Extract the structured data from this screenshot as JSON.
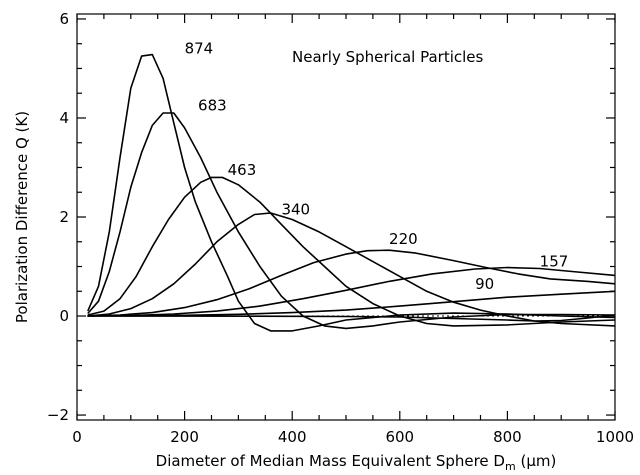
{
  "chart_data": {
    "type": "line",
    "title": "",
    "annotation": "Nearly Spherical Particles",
    "xlabel": "Diameter of Median Mass Equivalent Sphere D",
    "xlabel_sub": "m",
    "xlabel_unit": " (μm)",
    "ylabel": "Polarization Difference Q (K)",
    "xlim": [
      0,
      1000
    ],
    "ylim": [
      -2.1,
      6.1
    ],
    "x_ticks": [
      0,
      200,
      400,
      600,
      800,
      1000
    ],
    "y_ticks": [
      -2,
      0,
      2,
      4,
      6
    ],
    "x_tick_labels": [
      "0",
      "200",
      "400",
      "600",
      "800",
      "1000"
    ],
    "y_tick_labels": [
      "−2",
      "0",
      "2",
      "4",
      "6"
    ],
    "zero_line": true,
    "grid": false,
    "series": [
      {
        "name": "874",
        "label_pos": [
          200,
          5.3
        ],
        "points": [
          [
            20,
            0.1
          ],
          [
            40,
            0.6
          ],
          [
            60,
            1.7
          ],
          [
            80,
            3.2
          ],
          [
            100,
            4.6
          ],
          [
            120,
            5.25
          ],
          [
            140,
            5.28
          ],
          [
            160,
            4.8
          ],
          [
            180,
            3.9
          ],
          [
            200,
            3.0
          ],
          [
            220,
            2.3
          ],
          [
            250,
            1.5
          ],
          [
            280,
            0.8
          ],
          [
            300,
            0.3
          ],
          [
            330,
            -0.15
          ],
          [
            360,
            -0.3
          ],
          [
            400,
            -0.3
          ],
          [
            450,
            -0.2
          ],
          [
            500,
            -0.08
          ],
          [
            600,
            0.02
          ],
          [
            700,
            0.06
          ],
          [
            800,
            0.04
          ],
          [
            900,
            0.0
          ],
          [
            1000,
            -0.03
          ]
        ]
      },
      {
        "name": "683",
        "label_pos": [
          225,
          4.15
        ],
        "points": [
          [
            20,
            0.05
          ],
          [
            40,
            0.3
          ],
          [
            60,
            0.9
          ],
          [
            80,
            1.7
          ],
          [
            100,
            2.6
          ],
          [
            120,
            3.3
          ],
          [
            140,
            3.85
          ],
          [
            160,
            4.1
          ],
          [
            180,
            4.1
          ],
          [
            200,
            3.8
          ],
          [
            230,
            3.2
          ],
          [
            260,
            2.5
          ],
          [
            300,
            1.7
          ],
          [
            340,
            1.0
          ],
          [
            380,
            0.4
          ],
          [
            420,
            0.0
          ],
          [
            460,
            -0.2
          ],
          [
            500,
            -0.25
          ],
          [
            550,
            -0.2
          ],
          [
            600,
            -0.12
          ],
          [
            700,
            -0.02
          ],
          [
            800,
            0.03
          ],
          [
            900,
            0.03
          ],
          [
            1000,
            0.02
          ]
        ]
      },
      {
        "name": "463",
        "label_pos": [
          280,
          2.85
        ],
        "points": [
          [
            20,
            0.02
          ],
          [
            50,
            0.1
          ],
          [
            80,
            0.35
          ],
          [
            110,
            0.8
          ],
          [
            140,
            1.4
          ],
          [
            170,
            1.95
          ],
          [
            200,
            2.4
          ],
          [
            230,
            2.7
          ],
          [
            250,
            2.8
          ],
          [
            270,
            2.8
          ],
          [
            300,
            2.65
          ],
          [
            340,
            2.3
          ],
          [
            380,
            1.85
          ],
          [
            420,
            1.4
          ],
          [
            460,
            1.0
          ],
          [
            500,
            0.6
          ],
          [
            550,
            0.25
          ],
          [
            600,
            0.0
          ],
          [
            650,
            -0.15
          ],
          [
            700,
            -0.2
          ],
          [
            800,
            -0.18
          ],
          [
            900,
            -0.12
          ],
          [
            1000,
            -0.08
          ]
        ]
      },
      {
        "name": "340",
        "label_pos": [
          380,
          2.05
        ],
        "points": [
          [
            20,
            0.0
          ],
          [
            60,
            0.04
          ],
          [
            100,
            0.15
          ],
          [
            140,
            0.35
          ],
          [
            180,
            0.65
          ],
          [
            220,
            1.05
          ],
          [
            260,
            1.5
          ],
          [
            300,
            1.85
          ],
          [
            330,
            2.05
          ],
          [
            360,
            2.08
          ],
          [
            400,
            1.95
          ],
          [
            450,
            1.7
          ],
          [
            500,
            1.4
          ],
          [
            550,
            1.1
          ],
          [
            600,
            0.8
          ],
          [
            650,
            0.5
          ],
          [
            700,
            0.28
          ],
          [
            750,
            0.12
          ],
          [
            800,
            0.0
          ],
          [
            850,
            -0.1
          ],
          [
            900,
            -0.15
          ],
          [
            1000,
            -0.2
          ]
        ]
      },
      {
        "name": "220",
        "label_pos": [
          580,
          1.45
        ],
        "points": [
          [
            20,
            0.0
          ],
          [
            80,
            0.02
          ],
          [
            140,
            0.07
          ],
          [
            200,
            0.17
          ],
          [
            260,
            0.33
          ],
          [
            320,
            0.55
          ],
          [
            380,
            0.82
          ],
          [
            440,
            1.08
          ],
          [
            500,
            1.25
          ],
          [
            540,
            1.32
          ],
          [
            580,
            1.33
          ],
          [
            630,
            1.27
          ],
          [
            700,
            1.12
          ],
          [
            760,
            0.98
          ],
          [
            820,
            0.85
          ],
          [
            880,
            0.75
          ],
          [
            950,
            0.7
          ],
          [
            1000,
            0.65
          ]
        ]
      },
      {
        "name": "157",
        "label_pos": [
          860,
          1.0
        ],
        "points": [
          [
            20,
            0.0
          ],
          [
            100,
            0.01
          ],
          [
            180,
            0.04
          ],
          [
            260,
            0.1
          ],
          [
            340,
            0.2
          ],
          [
            420,
            0.35
          ],
          [
            500,
            0.52
          ],
          [
            580,
            0.7
          ],
          [
            660,
            0.85
          ],
          [
            740,
            0.95
          ],
          [
            800,
            0.98
          ],
          [
            860,
            0.96
          ],
          [
            920,
            0.9
          ],
          [
            1000,
            0.82
          ]
        ]
      },
      {
        "name": "90",
        "label_pos": [
          740,
          0.55
        ],
        "points": [
          [
            20,
            0.0
          ],
          [
            100,
            0.005
          ],
          [
            200,
            0.015
          ],
          [
            300,
            0.035
          ],
          [
            400,
            0.07
          ],
          [
            500,
            0.12
          ],
          [
            600,
            0.2
          ],
          [
            700,
            0.29
          ],
          [
            800,
            0.38
          ],
          [
            900,
            0.44
          ],
          [
            1000,
            0.5
          ]
        ]
      },
      {
        "name": "",
        "label_pos": null,
        "points": [
          [
            20,
            0.0
          ],
          [
            200,
            -0.002
          ],
          [
            400,
            -0.005
          ],
          [
            500,
            -0.01
          ],
          [
            600,
            -0.02
          ],
          [
            700,
            -0.05
          ],
          [
            800,
            -0.08
          ],
          [
            850,
            -0.1
          ],
          [
            900,
            -0.09
          ],
          [
            950,
            -0.04
          ],
          [
            1000,
            0.02
          ]
        ]
      }
    ]
  }
}
